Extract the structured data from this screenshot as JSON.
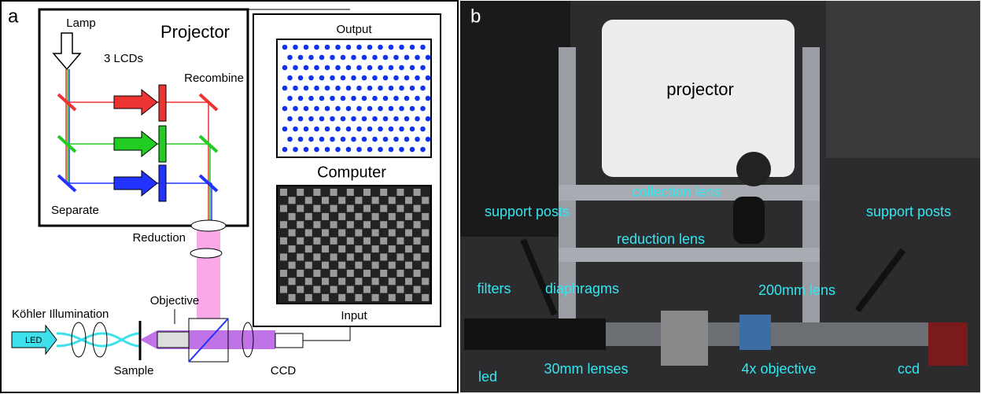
{
  "panel_a": {
    "label": "a",
    "lamp": "Lamp",
    "projector": "Projector",
    "lcds": "3 LCDs",
    "recombine": "Recombine",
    "separate": "Separate",
    "output": "Output",
    "computer": "Computer",
    "input": "Input",
    "reduction": "Reduction",
    "objective": "Objective",
    "kohler": "Köhler Illumination",
    "led": "LED",
    "sample": "Sample",
    "ccd": "CCD"
  },
  "panel_b": {
    "label": "b",
    "annotations": [
      "projector",
      "collection lens",
      "support posts",
      "support posts",
      "reduction lens",
      "filters",
      "diaphragms",
      "200mm lens",
      "led",
      "30mm lenses",
      "4x objective",
      "ccd"
    ]
  }
}
